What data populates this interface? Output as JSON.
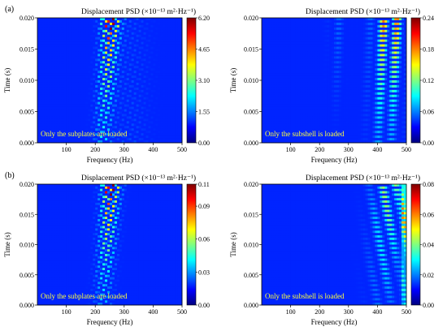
{
  "figure": {
    "row_labels": [
      "(a)",
      "(b)"
    ]
  },
  "colorscale": [
    "#00007f",
    "#0000ff",
    "#0080ff",
    "#00ffff",
    "#80ff80",
    "#ffff00",
    "#ff8000",
    "#ff0000",
    "#7f0000"
  ],
  "chart_data": [
    {
      "type": "heatmap",
      "title": "Displacement PSD (×10⁻¹³ m²·Hz⁻¹)",
      "xlabel": "Frequency (Hz)",
      "ylabel": "Time (s)",
      "xlim": [
        0,
        500
      ],
      "ylim": [
        0,
        0.02
      ],
      "xticks": [
        "100",
        "200",
        "300",
        "400",
        "500"
      ],
      "yticks": [
        "0.000",
        "0.005",
        "0.010",
        "0.015",
        "0.020"
      ],
      "colorbar_ticks": [
        "0.00",
        "1.55",
        "3.10",
        "4.65",
        "6.20"
      ],
      "colorbar_range": [
        0,
        6.2
      ],
      "annotation": "Only the subplates are loaded",
      "peak_frequency_hz": 270,
      "peak_time_s": 0.0195
    },
    {
      "type": "heatmap",
      "title": "Displacement PSD (×10⁻¹³ m²·Hz⁻¹)",
      "xlabel": "Frequency (Hz)",
      "ylabel": "",
      "xlim": [
        0,
        500
      ],
      "ylim": [
        0,
        0.02
      ],
      "xticks": [
        "100",
        "200",
        "300",
        "400",
        "500"
      ],
      "yticks": [
        "0.000",
        "0.005",
        "0.010",
        "0.015",
        "0.020"
      ],
      "colorbar_ticks": [
        "0.00",
        "0.06",
        "0.12",
        "0.18",
        "0.24"
      ],
      "colorbar_range": [
        0,
        0.24
      ],
      "annotation": "Only the subshell is loaded",
      "peak_frequency_hz": 455,
      "peak_time_s": 0.019
    },
    {
      "type": "heatmap",
      "title": "Displacement PSD (×10⁻¹³ m²·Hz⁻¹)",
      "xlabel": "Frequency (Hz)",
      "ylabel": "Time (s)",
      "xlim": [
        0,
        500
      ],
      "ylim": [
        0,
        0.02
      ],
      "xticks": [
        "100",
        "200",
        "300",
        "400",
        "500"
      ],
      "yticks": [
        "0.000",
        "0.005",
        "0.010",
        "0.015",
        "0.020"
      ],
      "colorbar_ticks": [
        "0.00",
        "0.03",
        "0.06",
        "0.09",
        "0.11"
      ],
      "colorbar_range": [
        0,
        0.11
      ],
      "annotation": "Only the subplates are loaded",
      "peak_frequency_hz": 270,
      "peak_time_s": 0.0195
    },
    {
      "type": "heatmap",
      "title": "Displacement PSD (×10⁻¹³ m²·Hz⁻¹)",
      "xlabel": "Frequency (Hz)",
      "ylabel": "",
      "xlim": [
        0,
        500
      ],
      "ylim": [
        0,
        0.02
      ],
      "xticks": [
        "100",
        "200",
        "300",
        "400",
        "500"
      ],
      "yticks": [
        "0.000",
        "0.005",
        "0.010",
        "0.015",
        "0.020"
      ],
      "colorbar_ticks": [
        "0.00",
        "0.02",
        "0.04",
        "0.06",
        "0.08"
      ],
      "colorbar_range": [
        0,
        0.08
      ],
      "annotation": "Only the subshell is loaded",
      "peak_frequency_hz": 490,
      "peak_time_s": 0.019
    }
  ]
}
